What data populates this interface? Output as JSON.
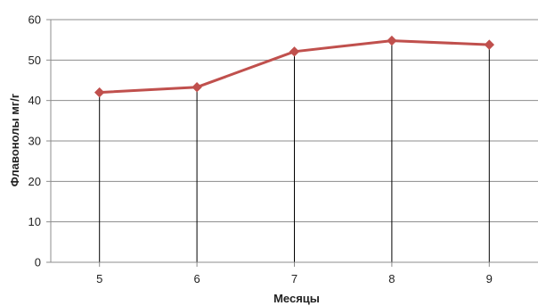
{
  "chart_data": {
    "type": "line",
    "title": "",
    "xlabel": "Месяцы",
    "ylabel": "Флавонолы мг/г",
    "categories": [
      "5",
      "6",
      "7",
      "8",
      "9"
    ],
    "series": [
      {
        "values": [
          42,
          43.3,
          52.1,
          54.8,
          53.8
        ],
        "color": "#c0504d",
        "marker": "diamond"
      }
    ],
    "ylim": [
      0,
      60
    ],
    "yticks": [
      "0",
      "10",
      "20",
      "30",
      "40",
      "50",
      "60"
    ],
    "grid": "horizontal",
    "drop_lines": true,
    "legend": "none"
  }
}
